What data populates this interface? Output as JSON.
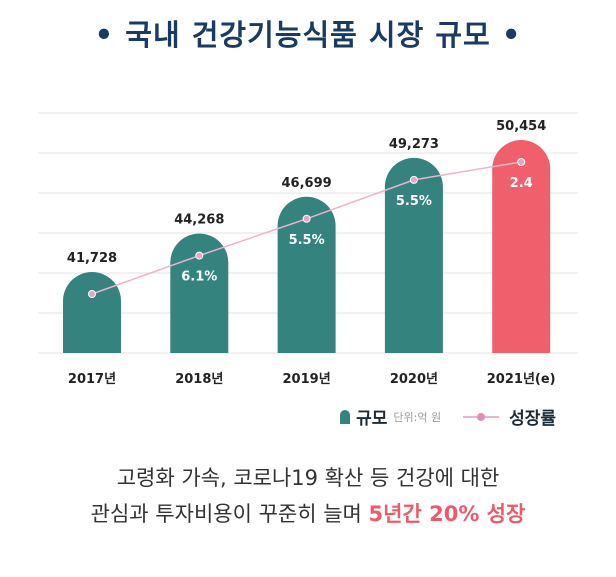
{
  "title": "• 국내 건강기능식품 시장 규모 •",
  "legend": {
    "bar_label": "규모",
    "unit": "단위:억 원",
    "line_label": "성장률"
  },
  "caption": {
    "line1": "고령화 가속, 코로나19 확산 등 건강에 대한",
    "line2": "관심과 투자비용이 꾸준히 늘며 ",
    "highlight": "5년간 20% 성장"
  },
  "colors": {
    "bar": "#35837f",
    "bar_estimate": "#f0606c",
    "line": "#eeb2cf",
    "title": "#183a63"
  },
  "chart_data": {
    "type": "bar",
    "title": "국내 건강기능식품 시장 규모",
    "unit": "억 원",
    "categories": [
      "2017년",
      "2018년",
      "2019년",
      "2020년",
      "2021년(e)"
    ],
    "series": [
      {
        "name": "규모",
        "values": [
          41728,
          44268,
          46699,
          49273,
          50454
        ],
        "labels": [
          "41,728",
          "44,268",
          "46,699",
          "49,273",
          "50,454"
        ]
      },
      {
        "name": "성장률",
        "type": "line",
        "values": [
          null,
          6.1,
          5.5,
          5.5,
          2.4
        ],
        "labels": [
          "",
          "6.1%",
          "5.5%",
          "5.5%",
          "2.4"
        ]
      }
    ],
    "grid": true,
    "legend_position": "bottom-right"
  }
}
